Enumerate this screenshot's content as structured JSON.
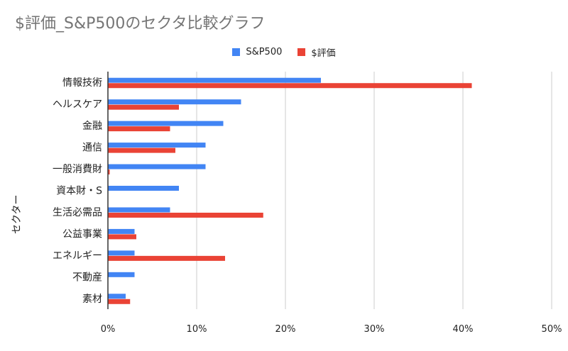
{
  "title": "$評価_S&P500のセクタ比較グラフ",
  "chart_data": {
    "type": "bar",
    "orientation": "horizontal",
    "title": "$評価_S&P500のセクタ比較グラフ",
    "ylabel": "セクター",
    "xlabel": "",
    "categories": [
      "情報技術",
      "ヘルスケア",
      "金融",
      "通信",
      "一般消費財",
      "資本財・S",
      "生活必需品",
      "公益事業",
      "エネルギー",
      "不動産",
      "素材"
    ],
    "series": [
      {
        "name": "S&P500",
        "color": "#4285f4",
        "values": [
          24,
          15,
          13,
          11,
          11,
          8,
          7,
          3,
          3,
          3,
          2
        ]
      },
      {
        "name": "$評価",
        "color": "#ea4335",
        "values": [
          41,
          8,
          7,
          7.6,
          0.2,
          0,
          17.5,
          3.2,
          13.2,
          0,
          2.5
        ]
      }
    ],
    "xlim": [
      0,
      50
    ],
    "xticks": [
      "0%",
      "10%",
      "20%",
      "30%",
      "40%",
      "50%"
    ],
    "grid": true,
    "legend": "top"
  }
}
